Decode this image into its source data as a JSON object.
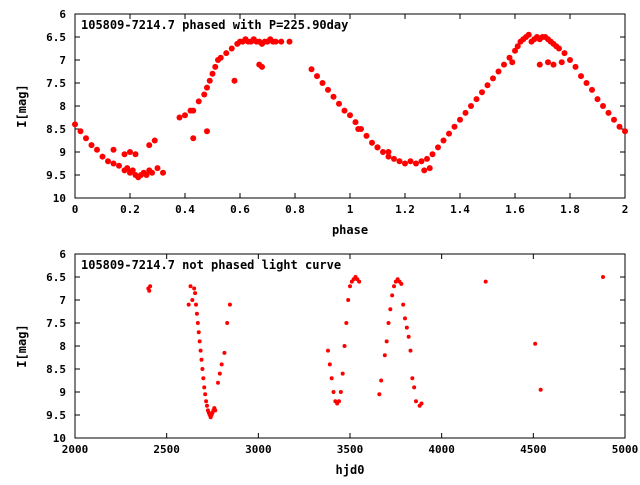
{
  "chart_data": [
    {
      "type": "scatter",
      "title": "105809-7214.7 phased with P=225.90day",
      "xlabel": "phase",
      "ylabel": "I[mag]",
      "xlim": [
        0,
        2
      ],
      "ylim": [
        10,
        6
      ],
      "y_inverted": true,
      "xticks": [
        "0",
        "0.2",
        "0.4",
        "0.6",
        "0.8",
        "1",
        "1.2",
        "1.4",
        "1.6",
        "1.8",
        "2"
      ],
      "yticks": [
        "6",
        "6.5",
        "7",
        "7.5",
        "8",
        "8.5",
        "9",
        "9.5",
        "10"
      ],
      "marker_color": "#ff0000",
      "series": [
        {
          "x": [
            0.0,
            0.02,
            0.04,
            0.06,
            0.08,
            0.1,
            0.12,
            0.14,
            0.16,
            0.18,
            0.19,
            0.2,
            0.21,
            0.22,
            0.23,
            0.24,
            0.25,
            0.26,
            0.27,
            0.28,
            0.3,
            0.32,
            0.14,
            0.18,
            0.2,
            0.22,
            0.27,
            0.29,
            0.38,
            0.4,
            0.42,
            0.43,
            0.45,
            0.47,
            0.48,
            0.49,
            0.5,
            0.51,
            0.52,
            0.53,
            0.55,
            0.57,
            0.59,
            0.6,
            0.61,
            0.62,
            0.63,
            0.64,
            0.65,
            0.66,
            0.67,
            0.68,
            0.69,
            0.7,
            0.71,
            0.72,
            0.73,
            0.75,
            0.78,
            0.43,
            0.48,
            0.58,
            0.67,
            0.68,
            0.86,
            0.88,
            0.9,
            0.92,
            0.94,
            0.96,
            0.98,
            1.0,
            1.02,
            1.04,
            1.06,
            1.08,
            1.1,
            1.12,
            1.14,
            1.16,
            1.18,
            1.2,
            1.22,
            1.24,
            1.26,
            1.28,
            1.3,
            1.32,
            1.34,
            1.36,
            1.38,
            1.4,
            1.42,
            1.44,
            1.46,
            1.48,
            1.5,
            1.52,
            1.54,
            1.56,
            1.58,
            1.6,
            1.61,
            1.62,
            1.63,
            1.64,
            1.65,
            1.66,
            1.67,
            1.68,
            1.69,
            1.7,
            1.71,
            1.72,
            1.73,
            1.74,
            1.75,
            1.76,
            1.78,
            1.8,
            1.82,
            1.84,
            1.86,
            1.88,
            1.9,
            1.92,
            1.94,
            1.96,
            1.98,
            2.0,
            1.03,
            1.1,
            1.14,
            1.27,
            1.29,
            1.59,
            1.69,
            1.72,
            1.74,
            1.77
          ],
          "y": [
            8.4,
            8.55,
            8.7,
            8.85,
            8.95,
            9.1,
            9.2,
            9.25,
            9.3,
            9.4,
            9.35,
            9.45,
            9.4,
            9.5,
            9.55,
            9.5,
            9.45,
            9.5,
            9.4,
            9.45,
            9.35,
            9.45,
            8.95,
            9.05,
            9.0,
            9.05,
            8.85,
            8.75,
            8.25,
            8.2,
            8.1,
            8.1,
            7.9,
            7.75,
            7.6,
            7.45,
            7.3,
            7.15,
            7.0,
            6.95,
            6.85,
            6.75,
            6.65,
            6.6,
            6.6,
            6.55,
            6.6,
            6.6,
            6.55,
            6.6,
            6.6,
            6.65,
            6.6,
            6.6,
            6.55,
            6.6,
            6.6,
            6.6,
            6.6,
            8.7,
            8.55,
            7.45,
            7.1,
            7.15,
            7.2,
            7.35,
            7.5,
            7.65,
            7.8,
            7.95,
            8.1,
            8.2,
            8.35,
            8.5,
            8.65,
            8.8,
            8.9,
            9.0,
            9.1,
            9.15,
            9.2,
            9.25,
            9.2,
            9.25,
            9.2,
            9.15,
            9.05,
            8.9,
            8.75,
            8.6,
            8.45,
            8.3,
            8.15,
            8.0,
            7.85,
            7.7,
            7.55,
            7.4,
            7.25,
            7.1,
            6.95,
            6.8,
            6.7,
            6.6,
            6.55,
            6.5,
            6.45,
            6.6,
            6.55,
            6.5,
            6.55,
            6.5,
            6.5,
            6.55,
            6.6,
            6.65,
            6.7,
            6.75,
            6.85,
            7.0,
            7.15,
            7.35,
            7.5,
            7.65,
            7.85,
            8.0,
            8.15,
            8.3,
            8.45,
            8.55,
            8.5,
            8.9,
            9.0,
            9.4,
            9.35,
            7.05,
            7.1,
            7.05,
            7.1,
            7.05
          ]
        }
      ]
    },
    {
      "type": "scatter",
      "title": "105809-7214.7 not phased light curve",
      "xlabel": "hjd0",
      "ylabel": "I[mag]",
      "xlim": [
        2000,
        5000
      ],
      "ylim": [
        10,
        6
      ],
      "y_inverted": true,
      "xticks": [
        "2000",
        "2500",
        "3000",
        "3500",
        "4000",
        "4500",
        "5000"
      ],
      "yticks": [
        "6",
        "6.5",
        "7",
        "7.5",
        "8",
        "8.5",
        "9",
        "9.5",
        "10"
      ],
      "marker_color": "#ff0000",
      "series": [
        {
          "x": [
            2400,
            2405,
            2410,
            2620,
            2630,
            2640,
            2650,
            2655,
            2660,
            2665,
            2670,
            2675,
            2680,
            2685,
            2690,
            2695,
            2700,
            2705,
            2710,
            2715,
            2720,
            2725,
            2730,
            2735,
            2740,
            2745,
            2750,
            2755,
            2760,
            2765,
            2780,
            2790,
            2800,
            2815,
            2830,
            2845,
            3380,
            3390,
            3400,
            3410,
            3420,
            3430,
            3440,
            3450,
            3460,
            3470,
            3480,
            3490,
            3500,
            3510,
            3520,
            3530,
            3540,
            3550,
            3660,
            3670,
            3690,
            3700,
            3710,
            3720,
            3730,
            3740,
            3750,
            3760,
            3770,
            3780,
            3790,
            3800,
            3810,
            3820,
            3830,
            3840,
            3850,
            3860,
            3880,
            3890,
            4240,
            4510,
            4540,
            4880
          ],
          "y": [
            6.75,
            6.8,
            6.7,
            7.1,
            6.7,
            7.0,
            6.75,
            6.85,
            7.1,
            7.3,
            7.5,
            7.7,
            7.9,
            8.1,
            8.3,
            8.5,
            8.7,
            8.9,
            9.05,
            9.2,
            9.3,
            9.4,
            9.45,
            9.5,
            9.55,
            9.5,
            9.45,
            9.4,
            9.35,
            9.4,
            8.8,
            8.6,
            8.4,
            8.15,
            7.5,
            7.1,
            8.1,
            8.4,
            8.7,
            9.0,
            9.2,
            9.25,
            9.2,
            9.0,
            8.6,
            8.0,
            7.5,
            7.0,
            6.7,
            6.6,
            6.55,
            6.5,
            6.55,
            6.6,
            9.05,
            8.75,
            8.2,
            7.9,
            7.5,
            7.2,
            6.9,
            6.7,
            6.6,
            6.55,
            6.6,
            6.65,
            7.1,
            7.4,
            7.6,
            7.8,
            8.1,
            8.7,
            8.9,
            9.2,
            9.3,
            9.25,
            6.6,
            7.95,
            8.95,
            6.5
          ]
        }
      ]
    }
  ]
}
